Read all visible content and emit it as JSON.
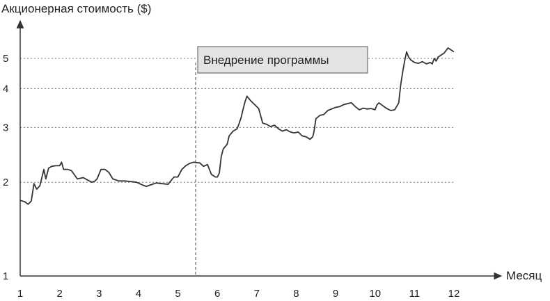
{
  "chart_data": {
    "type": "line",
    "title": "Акционерная стоимость ($)",
    "xlabel": "Месяц",
    "ylabel": "",
    "y_scale": "log",
    "xlim": [
      1,
      12
    ],
    "ylim": [
      1,
      6
    ],
    "x_ticks": [
      "1",
      "2",
      "3",
      "4",
      "5",
      "6",
      "7",
      "8",
      "9",
      "10",
      "11",
      "12"
    ],
    "y_ticks": [
      "1",
      "2",
      "3",
      "4",
      "5"
    ],
    "gridlines_y": [
      2,
      3,
      4,
      5
    ],
    "grid": "dotted horizontal at 2, 3, 4, 5",
    "annotation": {
      "text": "Внедрение программы",
      "x": 5.45
    },
    "line_color": "#333333",
    "series": [
      {
        "x": [
          1.0,
          1.12,
          1.2,
          1.28,
          1.35,
          1.42,
          1.5,
          1.6,
          1.65,
          1.72,
          1.8,
          1.9,
          2.0,
          2.05,
          2.1,
          2.2,
          2.3,
          2.45,
          2.6,
          2.72,
          2.82,
          2.9,
          2.95,
          3.05,
          3.15,
          3.25,
          3.35,
          3.5,
          3.65,
          3.8,
          3.95,
          4.1,
          4.2,
          4.3,
          4.45,
          4.6,
          4.75,
          4.9,
          5.0,
          5.1,
          5.2,
          5.3,
          5.4,
          5.5,
          5.55,
          5.65,
          5.75,
          5.85,
          5.95,
          6.0,
          6.05,
          6.1,
          6.15,
          6.25,
          6.3,
          6.4,
          6.5,
          6.55,
          6.6,
          6.65,
          6.7,
          6.75,
          6.85,
          6.95,
          7.05,
          7.15,
          7.25,
          7.35,
          7.45,
          7.55,
          7.65,
          7.75,
          7.85,
          7.95,
          8.05,
          8.15,
          8.25,
          8.35,
          8.42,
          8.45,
          8.5,
          8.6,
          8.7,
          8.8,
          8.9,
          9.0,
          9.1,
          9.2,
          9.3,
          9.4,
          9.5,
          9.6,
          9.7,
          9.8,
          9.9,
          10.0,
          10.05,
          10.1,
          10.2,
          10.3,
          10.4,
          10.5,
          10.6,
          10.65,
          10.7,
          10.75,
          10.8,
          10.85,
          10.9,
          11.0,
          11.1,
          11.2,
          11.3,
          11.4,
          11.45,
          11.5,
          11.55,
          11.6,
          11.65,
          11.7,
          11.75,
          11.8,
          11.85,
          11.9,
          11.95,
          12.0
        ],
        "values": [
          1.75,
          1.73,
          1.7,
          1.74,
          1.98,
          1.9,
          1.95,
          2.2,
          2.05,
          2.22,
          2.25,
          2.26,
          2.26,
          2.32,
          2.2,
          2.2,
          2.18,
          2.05,
          2.07,
          2.03,
          2.0,
          2.02,
          2.05,
          2.2,
          2.2,
          2.15,
          2.05,
          2.02,
          2.02,
          2.01,
          2.0,
          1.96,
          1.94,
          1.96,
          1.99,
          1.98,
          1.97,
          2.08,
          2.08,
          2.2,
          2.26,
          2.3,
          2.32,
          2.31,
          2.31,
          2.25,
          2.28,
          2.12,
          2.08,
          2.08,
          2.14,
          2.42,
          2.56,
          2.65,
          2.82,
          2.92,
          2.97,
          3.08,
          3.22,
          3.42,
          3.62,
          3.78,
          3.65,
          3.55,
          3.45,
          3.1,
          3.07,
          3.02,
          3.05,
          2.97,
          2.92,
          2.95,
          2.9,
          2.88,
          2.9,
          2.82,
          2.8,
          2.75,
          2.8,
          2.9,
          3.2,
          3.28,
          3.3,
          3.4,
          3.44,
          3.48,
          3.5,
          3.55,
          3.58,
          3.6,
          3.5,
          3.42,
          3.46,
          3.44,
          3.45,
          3.42,
          3.55,
          3.6,
          3.52,
          3.45,
          3.4,
          3.42,
          3.6,
          4.1,
          4.52,
          4.9,
          5.25,
          5.05,
          4.95,
          4.85,
          4.82,
          4.88,
          4.8,
          4.85,
          4.8,
          5.0,
          4.9,
          5.05,
          5.1,
          5.15,
          5.2,
          5.3,
          5.4,
          5.35,
          5.3,
          5.25
        ]
      }
    ]
  }
}
